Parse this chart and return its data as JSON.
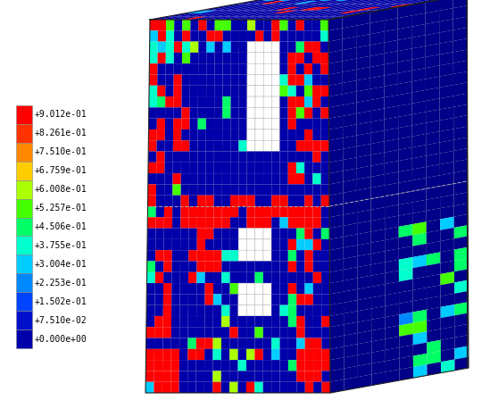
{
  "colorbar_labels": [
    "+9.012e-01",
    "+8.261e-01",
    "+7.510e-01",
    "+6.759e-01",
    "+6.008e-01",
    "+5.257e-01",
    "+4.506e-01",
    "+3.755e-01",
    "+3.004e-01",
    "+2.253e-01",
    "+1.502e-01",
    "+7.510e-02",
    "+0.000e+00"
  ],
  "colorbar_colors": [
    "#ff0000",
    "#ff3300",
    "#ff8800",
    "#ffcc00",
    "#aaff00",
    "#44ff00",
    "#00ff66",
    "#00ffcc",
    "#00ccff",
    "#0088ff",
    "#0044ff",
    "#0011cc",
    "#0000aa"
  ],
  "background_color": "#ffffff",
  "label_fontsize": 7.0,
  "fig_width": 5.49,
  "fig_height": 4.67
}
